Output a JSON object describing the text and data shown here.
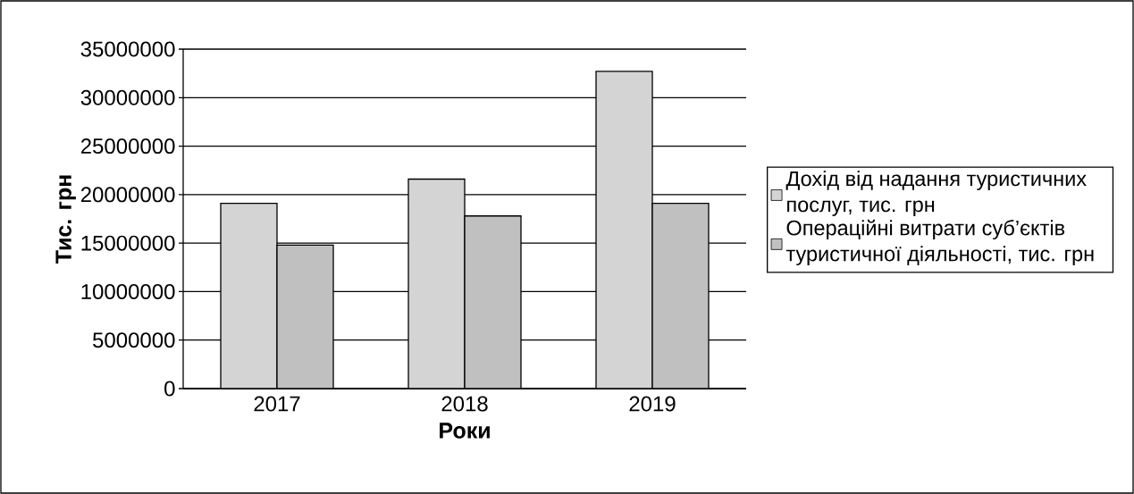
{
  "chart_data": {
    "type": "bar",
    "xlabel": "Роки",
    "ylabel": "Тис. грн",
    "categories": [
      "2017",
      "2018",
      "2019"
    ],
    "series": [
      {
        "name": "Дохід від надання туристичних послуг, тис. грн",
        "color": "#d4d4d4",
        "values": [
          19100000,
          21600000,
          32700000
        ]
      },
      {
        "name": "Операційні витрати суб’єктів туристичної діяльності, тис. грн",
        "color": "#c0c0c0",
        "values": [
          14800000,
          17800000,
          19100000
        ]
      }
    ],
    "ylim": [
      0,
      35000000
    ],
    "yticks": [
      0,
      5000000,
      10000000,
      15000000,
      20000000,
      25000000,
      30000000,
      35000000
    ],
    "grid": "y",
    "legend": "right"
  }
}
